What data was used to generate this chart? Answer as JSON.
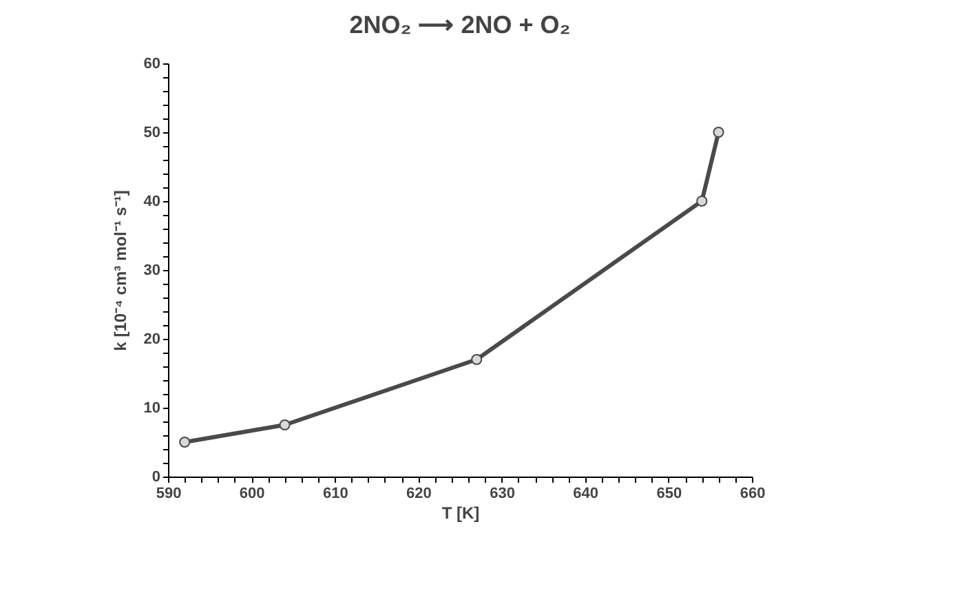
{
  "chart_data": {
    "type": "line",
    "title": "2NO₂ ⟶ 2NO + O₂",
    "xlabel": "T [K]",
    "ylabel": "k [10⁻⁴ cm³ mol⁻¹ s⁻¹]",
    "x": [
      592,
      604,
      627,
      654,
      656
    ],
    "series": [
      {
        "color": "#4a4a4a",
        "values": [
          5,
          7.5,
          17,
          40,
          50
        ]
      }
    ],
    "marker": "circle",
    "line_style": "solid",
    "grid": false,
    "xlim": [
      590,
      660
    ],
    "xticks": [
      590,
      {
        "value": 592,
        "label": null
      },
      {
        "value": 594,
        "label": null
      },
      {
        "value": 596,
        "label": null
      },
      {
        "value": 598,
        "label": null
      },
      600,
      {
        "value": 602,
        "label": null
      },
      {
        "value": 604,
        "label": null
      },
      {
        "value": 606,
        "label": null
      },
      {
        "value": 608,
        "label": null
      },
      610,
      {
        "value": 612,
        "label": null
      },
      {
        "value": 614,
        "label": null
      },
      {
        "value": 616,
        "label": null
      },
      {
        "value": 618,
        "label": null
      },
      620,
      {
        "value": 622,
        "label": null
      },
      {
        "value": 624,
        "label": null
      },
      {
        "value": 626,
        "label": null
      },
      {
        "value": 628,
        "label": null
      },
      630,
      {
        "value": 632,
        "label": null
      },
      {
        "value": 634,
        "label": null
      },
      {
        "value": 636,
        "label": null
      },
      {
        "value": 638,
        "label": null
      },
      640,
      {
        "value": 642,
        "label": null
      },
      {
        "value": 644,
        "label": null
      },
      {
        "value": 646,
        "label": null
      },
      {
        "value": 648,
        "label": null
      },
      650,
      {
        "value": 652,
        "label": null
      },
      {
        "value": 654,
        "label": null
      },
      {
        "value": 656,
        "label": null
      },
      {
        "value": 658,
        "label": null
      },
      660
    ],
    "ylim": [
      0,
      60
    ],
    "yticks": [
      0,
      {
        "value": 2,
        "label": null
      },
      {
        "value": 4,
        "label": null
      },
      {
        "value": 6,
        "label": null
      },
      {
        "value": 8,
        "label": null
      },
      10,
      {
        "value": 12,
        "label": null
      },
      {
        "value": 14,
        "label": null
      },
      {
        "value": 16,
        "label": null
      },
      {
        "value": 18,
        "label": null
      },
      20,
      {
        "value": 22,
        "label": null
      },
      {
        "value": 24,
        "label": null
      },
      {
        "value": 26,
        "label": null
      },
      {
        "value": 28,
        "label": null
      },
      30,
      {
        "value": 32,
        "label": null
      },
      {
        "value": 34,
        "label": null
      },
      {
        "value": 36,
        "label": null
      },
      {
        "value": 38,
        "label": null
      },
      40,
      {
        "value": 42,
        "label": null
      },
      {
        "value": 44,
        "label": null
      },
      {
        "value": 46,
        "label": null
      },
      {
        "value": 48,
        "label": null
      },
      50,
      {
        "value": 52,
        "label": null
      },
      {
        "value": 54,
        "label": null
      },
      {
        "value": 56,
        "label": null
      },
      {
        "value": 58,
        "label": null
      },
      60
    ]
  }
}
